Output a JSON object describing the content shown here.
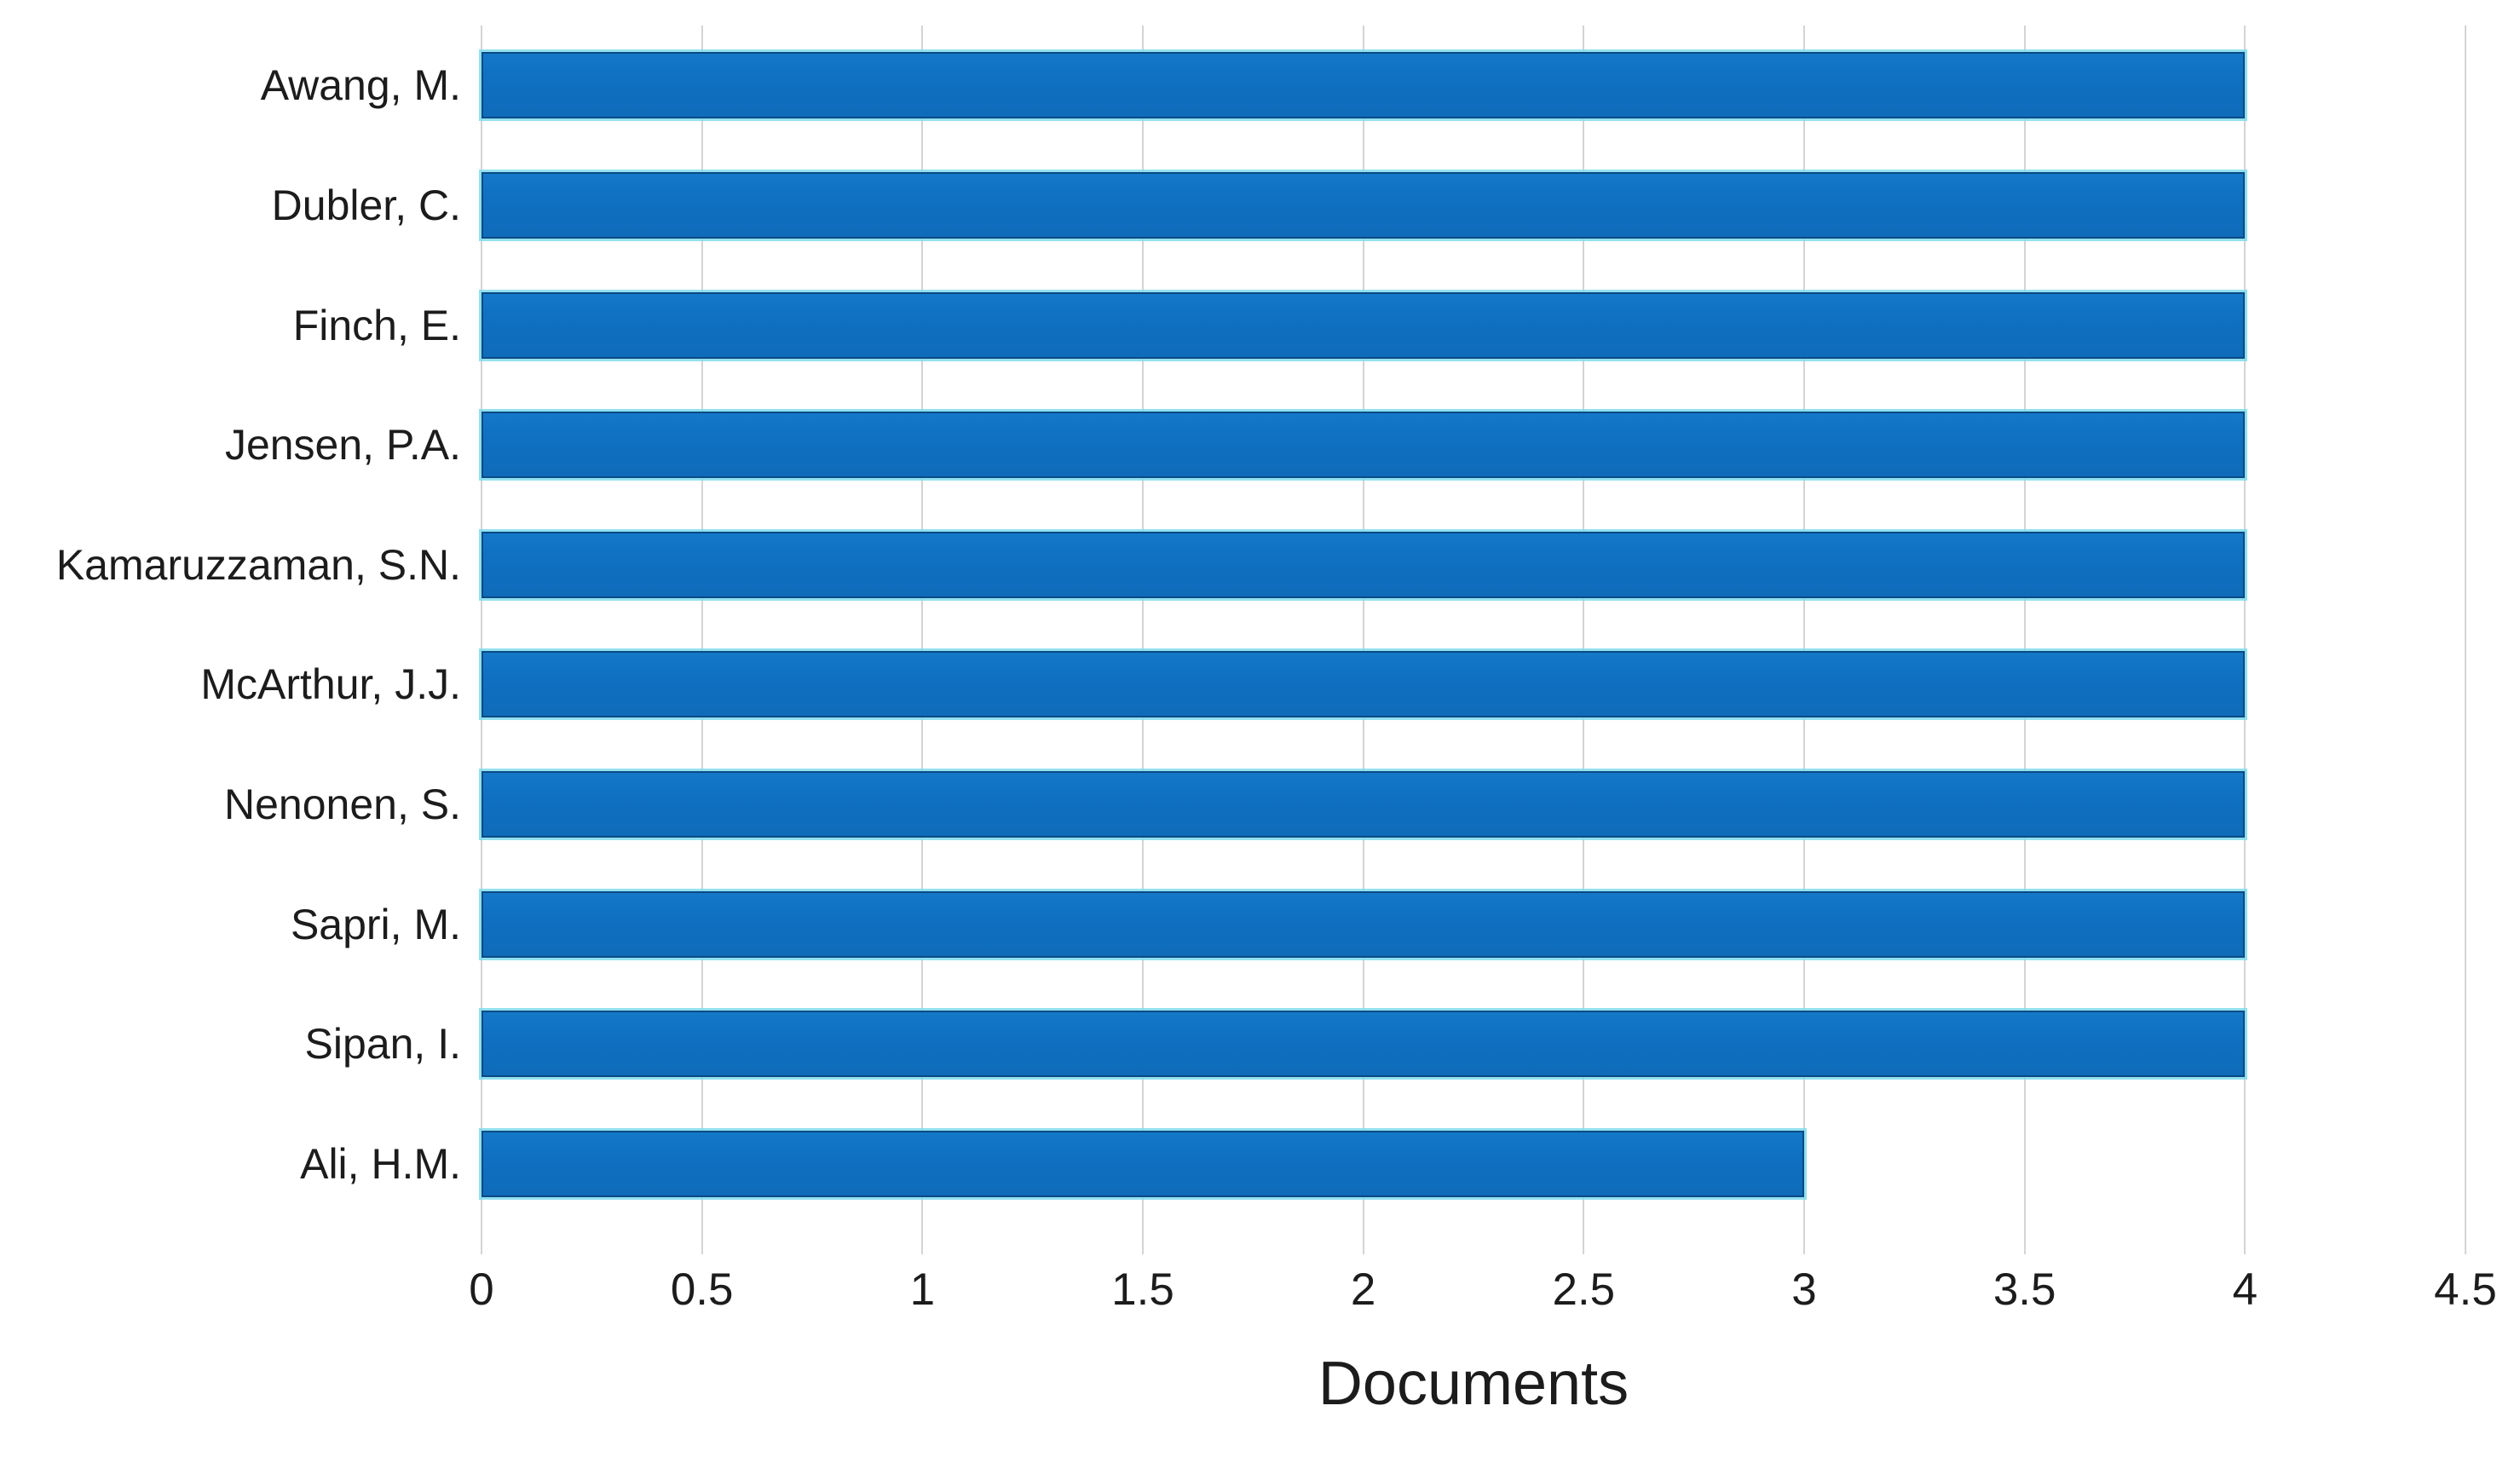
{
  "chart_data": {
    "type": "bar",
    "orientation": "horizontal",
    "title": "",
    "xlabel": "Documents",
    "ylabel": "",
    "categories": [
      "Awang, M.",
      "Dubler, C.",
      "Finch, E.",
      "Jensen, P.A.",
      "Kamaruzzaman, S.N.",
      "McArthur, J.J.",
      "Nenonen, S.",
      "Sapri, M.",
      "Sipan, I.",
      "Ali, H.M."
    ],
    "values": [
      4,
      4,
      4,
      4,
      4,
      4,
      4,
      4,
      4,
      3
    ],
    "xlim": [
      0,
      4.5
    ],
    "xtick_values": [
      0,
      0.5,
      1,
      1.5,
      2,
      2.5,
      3,
      3.5,
      4,
      4.5
    ],
    "xtick_labels": [
      "0",
      "0.5",
      "1",
      "1.5",
      "2",
      "2.5",
      "3",
      "3.5",
      "4",
      "4.5"
    ],
    "grid": "vertical",
    "legend": "none",
    "colors": {
      "bar_fill": "#1172C2",
      "bar_edge": "#0B4A85",
      "bar_glow": "#7FDCEC",
      "gridline": "#D6D3D3",
      "text": "#1C1C1C",
      "background": "#FFFFFF"
    }
  }
}
